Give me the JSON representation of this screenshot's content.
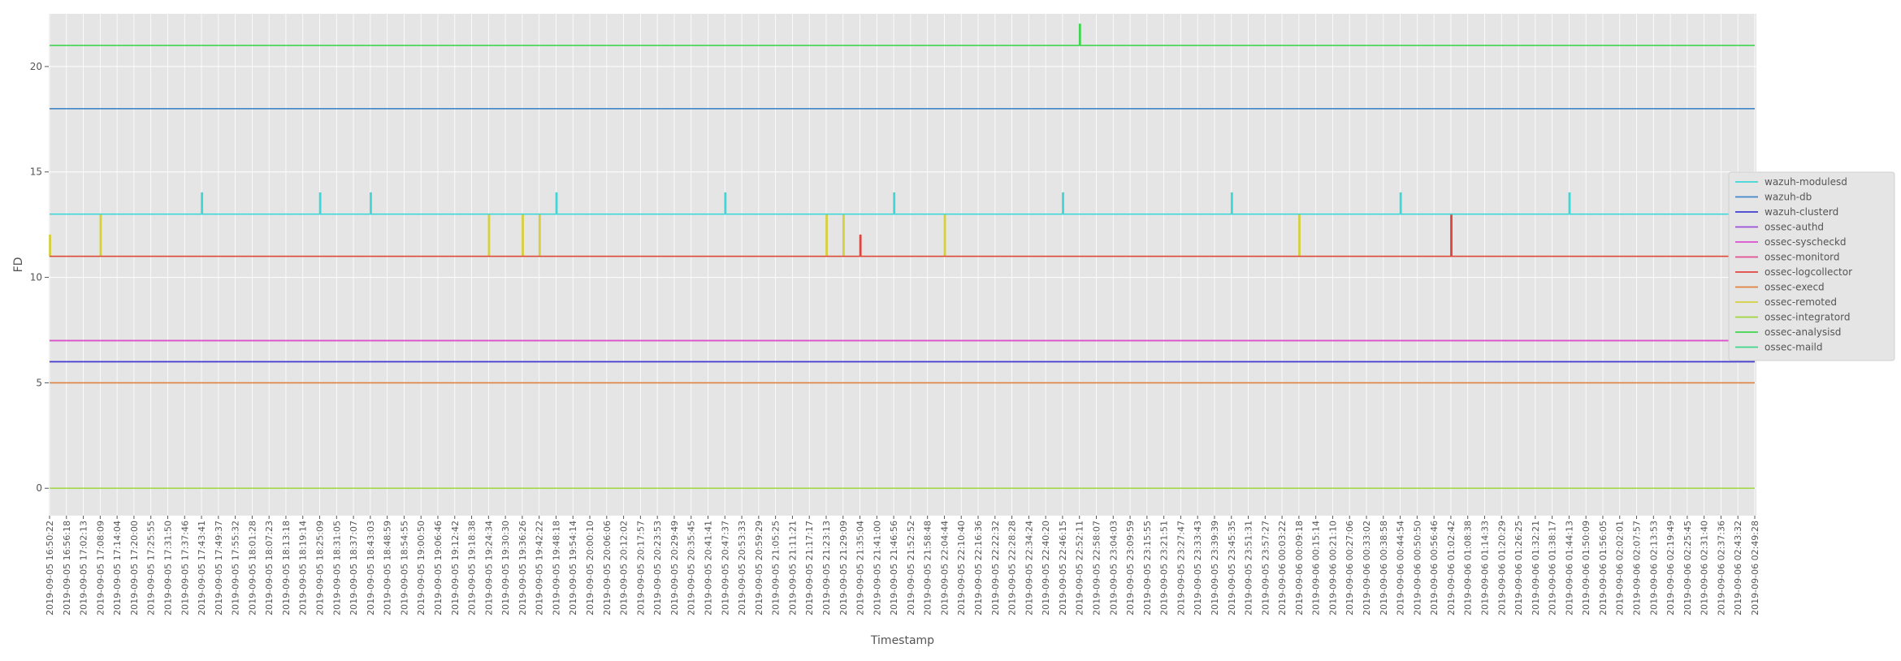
{
  "chart_data": {
    "type": "line",
    "title": "",
    "xlabel": "Timestamp",
    "ylabel": "FD",
    "ylim": [
      -1.3,
      22.5
    ],
    "yticks": [
      0,
      5,
      10,
      15,
      20
    ],
    "grid": true,
    "legend_position": "center-right",
    "x_start": "2019-09-05 16:50:22",
    "x_end": "2019-09-06 02:49:28",
    "xtick_labels": [
      "2019-09-05 16:50:22",
      "2019-09-05 16:56:18",
      "2019-09-05 17:02:13",
      "2019-09-05 17:08:09",
      "2019-09-05 17:14:04",
      "2019-09-05 17:20:00",
      "2019-09-05 17:25:55",
      "2019-09-05 17:31:50",
      "2019-09-05 17:37:46",
      "2019-09-05 17:43:41",
      "2019-09-05 17:49:37",
      "2019-09-05 17:55:32",
      "2019-09-05 18:01:28",
      "2019-09-05 18:07:23",
      "2019-09-05 18:13:18",
      "2019-09-05 18:19:14",
      "2019-09-05 18:25:09",
      "2019-09-05 18:31:05",
      "2019-09-05 18:37:07",
      "2019-09-05 18:43:03",
      "2019-09-05 18:48:59",
      "2019-09-05 18:54:55",
      "2019-09-05 19:00:50",
      "2019-09-05 19:06:46",
      "2019-09-05 19:12:42",
      "2019-09-05 19:18:38",
      "2019-09-05 19:24:34",
      "2019-09-05 19:30:30",
      "2019-09-05 19:36:26",
      "2019-09-05 19:42:22",
      "2019-09-05 19:48:18",
      "2019-09-05 19:54:14",
      "2019-09-05 20:00:10",
      "2019-09-05 20:06:06",
      "2019-09-05 20:12:02",
      "2019-09-05 20:17:57",
      "2019-09-05 20:23:53",
      "2019-09-05 20:29:49",
      "2019-09-05 20:35:45",
      "2019-09-05 20:41:41",
      "2019-09-05 20:47:37",
      "2019-09-05 20:53:33",
      "2019-09-05 20:59:29",
      "2019-09-05 21:05:25",
      "2019-09-05 21:11:21",
      "2019-09-05 21:17:17",
      "2019-09-05 21:23:13",
      "2019-09-05 21:29:09",
      "2019-09-05 21:35:04",
      "2019-09-05 21:41:00",
      "2019-09-05 21:46:56",
      "2019-09-05 21:52:52",
      "2019-09-05 21:58:48",
      "2019-09-05 22:04:44",
      "2019-09-05 22:10:40",
      "2019-09-05 22:16:36",
      "2019-09-05 22:22:32",
      "2019-09-05 22:28:28",
      "2019-09-05 22:34:24",
      "2019-09-05 22:40:20",
      "2019-09-05 22:46:15",
      "2019-09-05 22:52:11",
      "2019-09-05 22:58:07",
      "2019-09-05 23:04:03",
      "2019-09-05 23:09:59",
      "2019-09-05 23:15:55",
      "2019-09-05 23:21:51",
      "2019-09-05 23:27:47",
      "2019-09-05 23:33:43",
      "2019-09-05 23:39:39",
      "2019-09-05 23:45:35",
      "2019-09-05 23:51:31",
      "2019-09-05 23:57:27",
      "2019-09-06 00:03:22",
      "2019-09-06 00:09:18",
      "2019-09-06 00:15:14",
      "2019-09-06 00:21:10",
      "2019-09-06 00:27:06",
      "2019-09-06 00:33:02",
      "2019-09-06 00:38:58",
      "2019-09-06 00:44:54",
      "2019-09-06 00:50:50",
      "2019-09-06 00:56:46",
      "2019-09-06 01:02:42",
      "2019-09-06 01:08:38",
      "2019-09-06 01:14:33",
      "2019-09-06 01:20:29",
      "2019-09-06 01:26:25",
      "2019-09-06 01:32:21",
      "2019-09-06 01:38:17",
      "2019-09-06 01:44:13",
      "2019-09-06 01:50:09",
      "2019-09-06 01:56:05",
      "2019-09-06 02:02:01",
      "2019-09-06 02:07:57",
      "2019-09-06 02:13:53",
      "2019-09-06 02:19:49",
      "2019-09-06 02:25:45",
      "2019-09-06 02:31:40",
      "2019-09-06 02:37:36",
      "2019-09-06 02:43:32",
      "2019-09-06 02:49:28"
    ],
    "series": [
      {
        "name": "wazuh-modulesd",
        "color": "#3fd7d7",
        "baseline": 13,
        "spikes": [
          {
            "x": "2019-09-05 17:43:41",
            "y": 14
          },
          {
            "x": "2019-09-05 18:25:09",
            "y": 14
          },
          {
            "x": "2019-09-05 18:43:03",
            "y": 14
          },
          {
            "x": "2019-09-05 19:48:18",
            "y": 14
          },
          {
            "x": "2019-09-05 20:47:37",
            "y": 14
          },
          {
            "x": "2019-09-05 21:46:56",
            "y": 14
          },
          {
            "x": "2019-09-05 22:46:15",
            "y": 14
          },
          {
            "x": "2019-09-05 23:45:35",
            "y": 14
          },
          {
            "x": "2019-09-06 00:44:54",
            "y": 14
          },
          {
            "x": "2019-09-06 01:44:13",
            "y": 14
          },
          {
            "x": "2019-09-06 02:43:32",
            "y": 14
          }
        ]
      },
      {
        "name": "wazuh-db",
        "color": "#4285c8",
        "baseline": 18,
        "spikes": []
      },
      {
        "name": "wazuh-clusterd",
        "color": "#3f3fcf",
        "baseline": 6,
        "spikes": []
      },
      {
        "name": "ossec-authd",
        "color": "#9a4fd6",
        "baseline": 6,
        "spikes": []
      },
      {
        "name": "ossec-syscheckd",
        "color": "#d84fd0",
        "baseline": 7,
        "spikes": []
      },
      {
        "name": "ossec-monitord",
        "color": "#e04f8f",
        "baseline": 7,
        "spikes": []
      },
      {
        "name": "ossec-logcollector",
        "color": "#e0443f",
        "baseline": 11,
        "spikes": [
          {
            "x": "2019-09-05 21:35:04",
            "y": 12
          },
          {
            "x": "2019-09-06 01:02:42",
            "y": 13
          }
        ]
      },
      {
        "name": "ossec-execd",
        "color": "#e0823f",
        "baseline": 5,
        "spikes": []
      },
      {
        "name": "ossec-remoted",
        "color": "#d6d03f",
        "baseline": 11,
        "spikes": [
          {
            "x": "2019-09-05 16:50:22",
            "y": 12
          },
          {
            "x": "2019-09-05 17:08:09",
            "y": 13
          },
          {
            "x": "2019-09-05 19:24:34",
            "y": 13
          },
          {
            "x": "2019-09-05 19:36:26",
            "y": 13
          },
          {
            "x": "2019-09-05 19:42:22",
            "y": 13
          },
          {
            "x": "2019-09-05 21:23:13",
            "y": 13
          },
          {
            "x": "2019-09-05 21:29:09",
            "y": 13
          },
          {
            "x": "2019-09-05 22:04:44",
            "y": 13
          },
          {
            "x": "2019-09-06 00:09:18",
            "y": 13
          }
        ]
      },
      {
        "name": "ossec-integratord",
        "color": "#9fd63f",
        "baseline": 0,
        "spikes": []
      },
      {
        "name": "ossec-analysisd",
        "color": "#3fd64f",
        "baseline": 21,
        "spikes": [
          {
            "x": "2019-09-05 22:52:11",
            "y": 22
          }
        ]
      },
      {
        "name": "ossec-maild",
        "color": "#3fd68a",
        "baseline": 0,
        "spikes": []
      }
    ]
  }
}
